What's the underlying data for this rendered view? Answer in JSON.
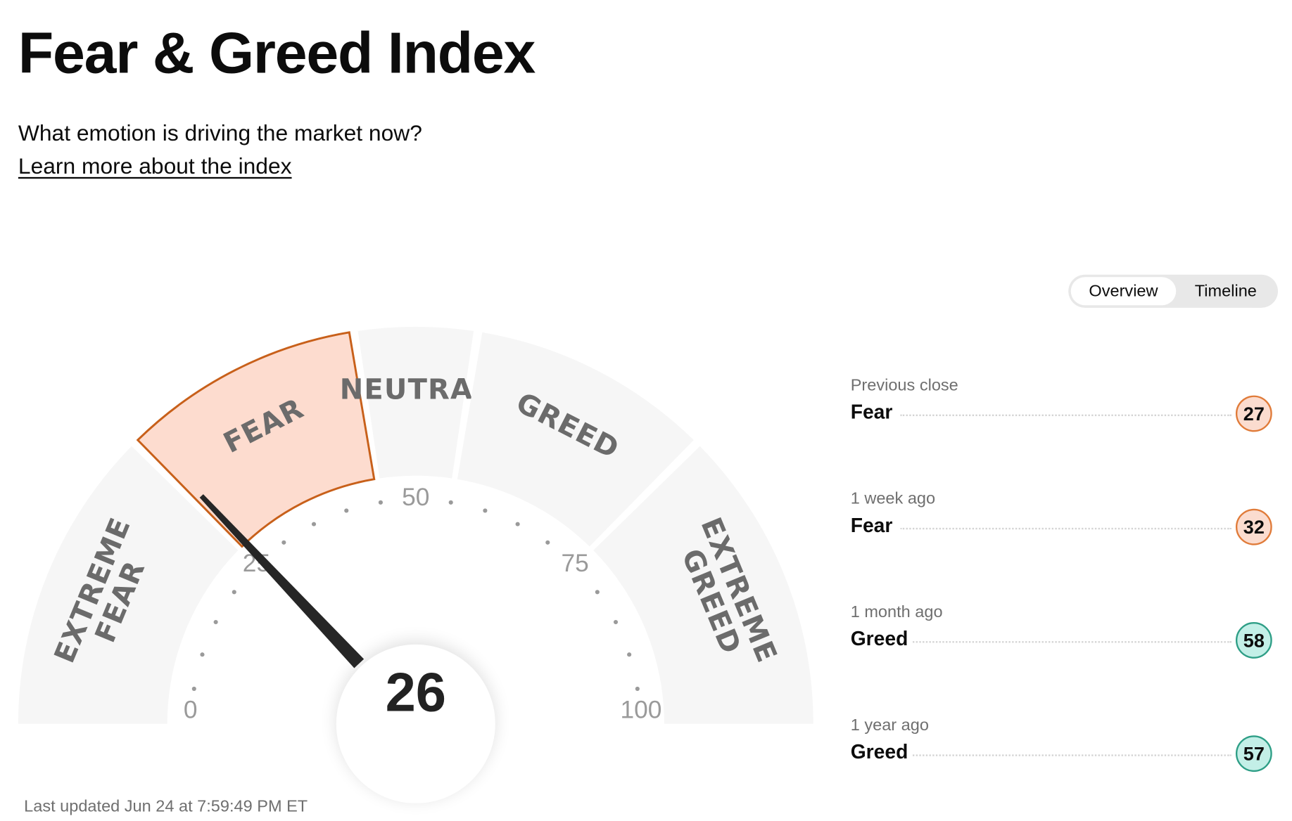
{
  "header": {
    "title": "Fear & Greed Index",
    "subtitle": "What emotion is driving the market now?",
    "link": "Learn more about the index"
  },
  "tabs": [
    "Overview",
    "Timeline"
  ],
  "gauge": {
    "value": 26,
    "ticks": [
      0,
      25,
      50,
      75,
      100
    ],
    "segments": [
      "EXTREME FEAR",
      "FEAR",
      "NEUTRAL",
      "GREED",
      "EXTREME GREED"
    ],
    "highlight_color": "#fddccf",
    "highlight_stroke": "#c8601a",
    "segment_color": "#f6f6f6"
  },
  "history": [
    {
      "label": "Previous close",
      "rating": "Fear",
      "value": 27,
      "color": "#fbdccf",
      "border": "#e07b39"
    },
    {
      "label": "1 week ago",
      "rating": "Fear",
      "value": 32,
      "color": "#fbdccf",
      "border": "#e07b39"
    },
    {
      "label": "1 month ago",
      "rating": "Greed",
      "value": 58,
      "color": "#c3efe7",
      "border": "#2e9e86"
    },
    {
      "label": "1 year ago",
      "rating": "Greed",
      "value": 57,
      "color": "#c3efe7",
      "border": "#2e9e86"
    }
  ],
  "last_updated": "Last updated Jun 24 at 7:59:49 PM ET"
}
